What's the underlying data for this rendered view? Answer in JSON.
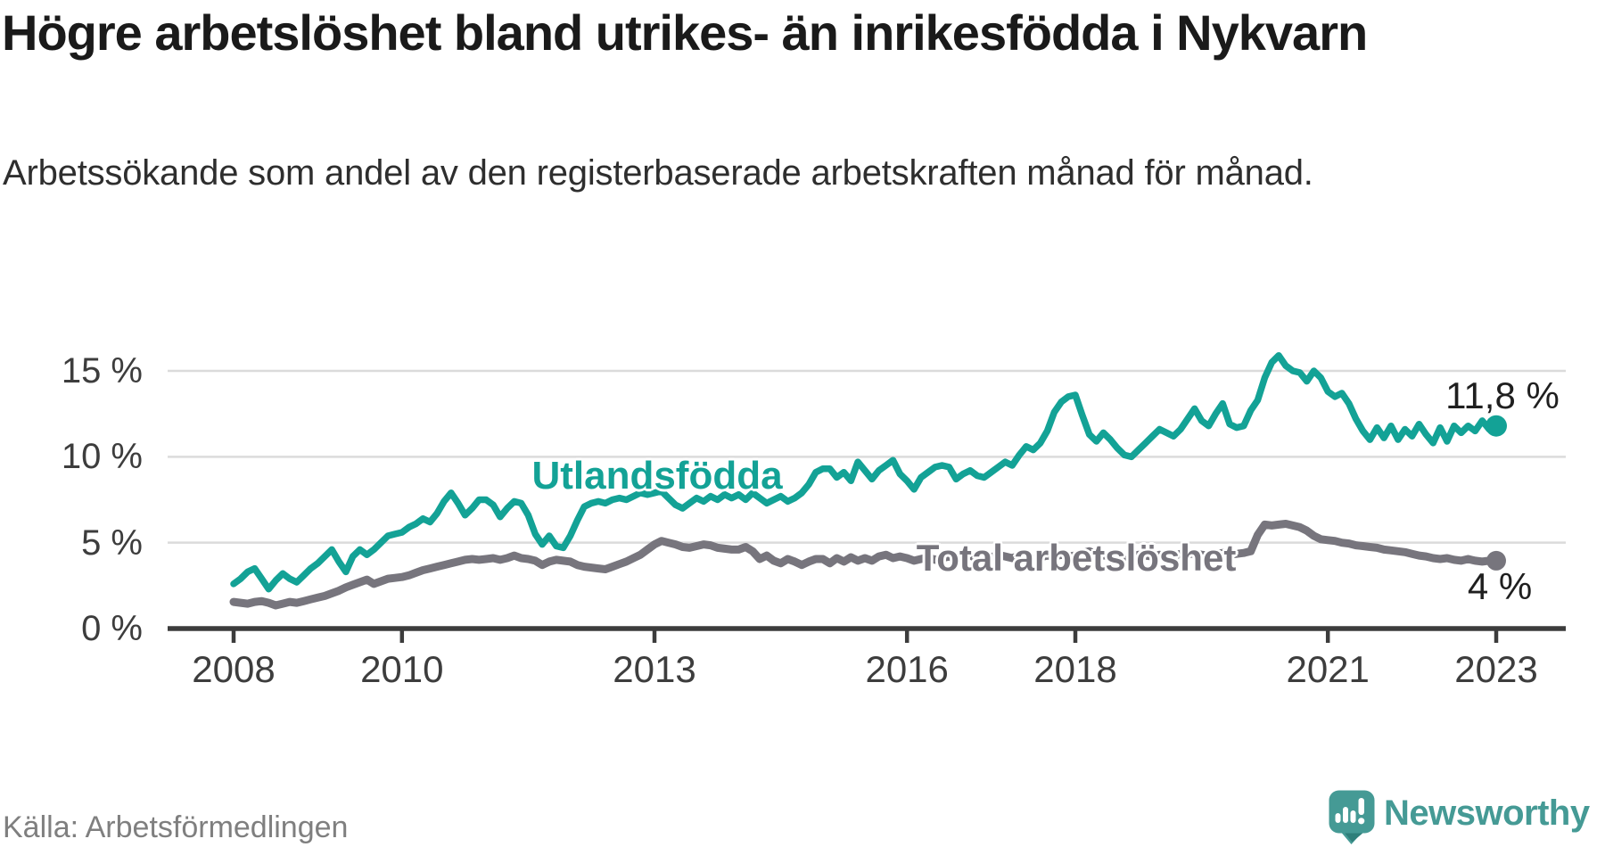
{
  "header": {
    "title": "Högre arbetslöshet bland utrikes- än inrikesfödda i Nykvarn",
    "subtitle": "Arbetssökande som andel av den registerbaserade arbetskraften månad för månad."
  },
  "footer": {
    "source": "Källa: Arbetsförmedlingen",
    "logo_text": "Newsworthy"
  },
  "colors": {
    "accent_teal": "#13A296",
    "line_gray": "#77757D",
    "gridline": "#DBDBDB",
    "axis": "#3C3C3C",
    "tick_text": "#3D3D3D",
    "logo_teal": "#459A95"
  },
  "chart_data": {
    "type": "line",
    "frequency": "monthly",
    "x_start_year": 2008,
    "x_end_year": 2023,
    "grid": true,
    "ylim": [
      0,
      16.5
    ],
    "y_ticks": [
      {
        "value": 0,
        "label": "0 %"
      },
      {
        "value": 5,
        "label": "5 %"
      },
      {
        "value": 10,
        "label": "10 %"
      },
      {
        "value": 15,
        "label": "15 %"
      }
    ],
    "x_ticks": [
      {
        "year": 2008,
        "label": "2008"
      },
      {
        "year": 2010,
        "label": "2010"
      },
      {
        "year": 2013,
        "label": "2013"
      },
      {
        "year": 2016,
        "label": "2016"
      },
      {
        "year": 2018,
        "label": "2018"
      },
      {
        "year": 2021,
        "label": "2021"
      },
      {
        "year": 2023,
        "label": "2023"
      }
    ],
    "series": [
      {
        "name": "Utlandsfödda",
        "color": "#13A296",
        "end_label": "11,8 %",
        "end_value": 11.8,
        "values": [
          2.6,
          2.9,
          3.3,
          3.5,
          2.9,
          2.3,
          2.8,
          3.2,
          2.9,
          2.7,
          3.1,
          3.5,
          3.8,
          4.2,
          4.6,
          3.9,
          3.3,
          4.2,
          4.6,
          4.3,
          4.6,
          5.0,
          5.4,
          5.5,
          5.6,
          5.9,
          6.1,
          6.4,
          6.2,
          6.7,
          7.4,
          7.9,
          7.3,
          6.6,
          7.0,
          7.5,
          7.5,
          7.2,
          6.5,
          7.0,
          7.4,
          7.3,
          6.6,
          5.5,
          4.9,
          5.4,
          4.8,
          4.7,
          5.4,
          6.3,
          7.1,
          7.3,
          7.4,
          7.3,
          7.5,
          7.6,
          7.5,
          7.7,
          7.9,
          7.8,
          7.9,
          8.0,
          7.6,
          7.2,
          7.0,
          7.3,
          7.6,
          7.4,
          7.7,
          7.5,
          7.8,
          7.6,
          7.8,
          7.5,
          7.9,
          7.6,
          7.3,
          7.5,
          7.7,
          7.4,
          7.6,
          7.9,
          8.4,
          9.1,
          9.3,
          9.3,
          8.8,
          9.1,
          8.6,
          9.7,
          9.2,
          8.7,
          9.2,
          9.5,
          9.8,
          9.0,
          8.6,
          8.1,
          8.8,
          9.1,
          9.4,
          9.5,
          9.4,
          8.7,
          9.0,
          9.2,
          8.9,
          8.8,
          9.1,
          9.4,
          9.7,
          9.5,
          10.1,
          10.6,
          10.4,
          10.8,
          11.5,
          12.6,
          13.2,
          13.5,
          13.6,
          12.4,
          11.3,
          10.9,
          11.4,
          11.0,
          10.5,
          10.1,
          10.0,
          10.4,
          10.8,
          11.2,
          11.6,
          11.4,
          11.2,
          11.6,
          12.2,
          12.8,
          12.1,
          11.8,
          12.5,
          13.1,
          11.9,
          11.7,
          11.8,
          12.7,
          13.3,
          14.6,
          15.5,
          15.9,
          15.3,
          15.0,
          14.9,
          14.4,
          15.0,
          14.6,
          13.8,
          13.5,
          13.7,
          13.1,
          12.2,
          11.5,
          11.0,
          11.7,
          11.1,
          11.8,
          11.0,
          11.6,
          11.2,
          11.9,
          11.3,
          10.8,
          11.7,
          10.9,
          11.8,
          11.4,
          11.8,
          11.5,
          12.1,
          11.6,
          11.8
        ]
      },
      {
        "name": "Total arbetslöshet",
        "color": "#77757D",
        "end_label": "4 %",
        "end_value": 4.0,
        "values": [
          1.55,
          1.5,
          1.45,
          1.55,
          1.6,
          1.5,
          1.35,
          1.45,
          1.55,
          1.5,
          1.6,
          1.7,
          1.8,
          1.9,
          2.05,
          2.2,
          2.4,
          2.55,
          2.7,
          2.85,
          2.6,
          2.75,
          2.9,
          2.95,
          3.0,
          3.1,
          3.25,
          3.4,
          3.5,
          3.6,
          3.7,
          3.8,
          3.9,
          4.0,
          4.05,
          4.0,
          4.05,
          4.1,
          4.0,
          4.1,
          4.25,
          4.1,
          4.05,
          3.95,
          3.7,
          3.9,
          4.0,
          3.95,
          3.9,
          3.7,
          3.6,
          3.55,
          3.5,
          3.45,
          3.6,
          3.75,
          3.9,
          4.1,
          4.3,
          4.6,
          4.9,
          5.1,
          5.0,
          4.9,
          4.75,
          4.7,
          4.8,
          4.9,
          4.85,
          4.7,
          4.65,
          4.6,
          4.6,
          4.75,
          4.5,
          4.05,
          4.25,
          3.95,
          3.8,
          4.05,
          3.9,
          3.7,
          3.9,
          4.05,
          4.05,
          3.8,
          4.1,
          3.9,
          4.15,
          3.95,
          4.1,
          3.95,
          4.2,
          4.3,
          4.1,
          4.2,
          4.1,
          3.95,
          4.05,
          4.15,
          4.0,
          4.1,
          4.2,
          4.05,
          4.15,
          4.25,
          4.1,
          4.2,
          4.15,
          4.3,
          4.2,
          4.1,
          4.25,
          4.15,
          4.0,
          4.15,
          4.25,
          4.2,
          4.3,
          4.2,
          4.25,
          4.4,
          4.5,
          4.35,
          4.25,
          4.3,
          4.2,
          4.1,
          4.2,
          4.3,
          4.25,
          4.2,
          4.3,
          4.2,
          4.25,
          4.35,
          4.3,
          4.4,
          4.3,
          4.25,
          4.35,
          4.4,
          4.3,
          4.35,
          4.4,
          4.5,
          5.45,
          6.05,
          6.0,
          6.05,
          6.1,
          6.0,
          5.9,
          5.7,
          5.4,
          5.2,
          5.15,
          5.1,
          5.0,
          4.95,
          4.85,
          4.8,
          4.75,
          4.7,
          4.6,
          4.55,
          4.5,
          4.45,
          4.35,
          4.25,
          4.2,
          4.1,
          4.05,
          4.1,
          4.0,
          3.95,
          4.05,
          3.95,
          3.9,
          3.95,
          3.95
        ]
      }
    ]
  }
}
